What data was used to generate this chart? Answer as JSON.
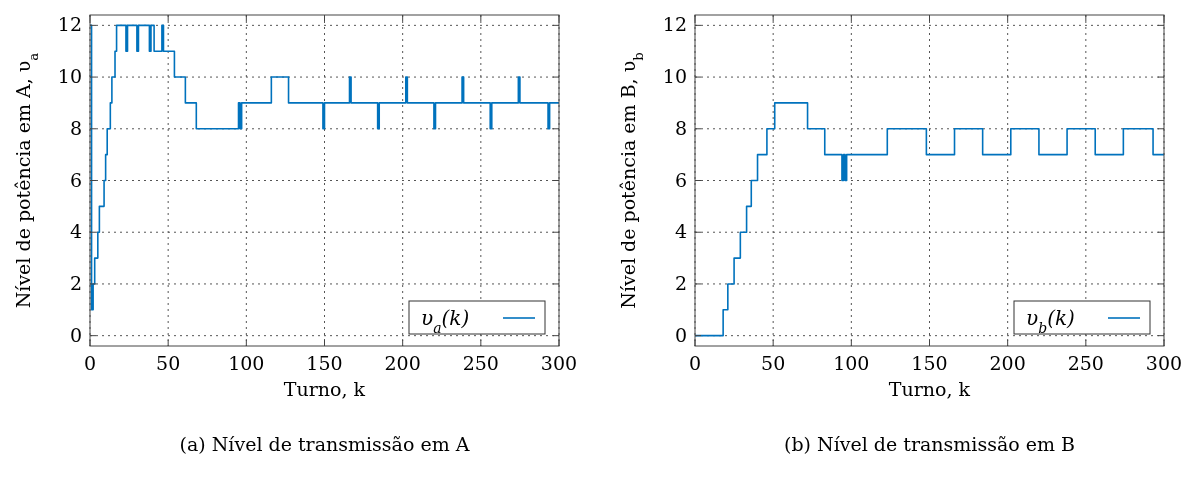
{
  "chart_data": [
    {
      "type": "step",
      "title": "(a) Nível de transmissão em A",
      "xlabel": "Turno, k",
      "ylabel": "Nível de potência em A, υ$_{a}$",
      "xlim": [
        0,
        300
      ],
      "ylim": [
        -0.4,
        12.4
      ],
      "xticks": [
        0,
        50,
        100,
        150,
        200,
        250,
        300
      ],
      "yticks": [
        0,
        2,
        4,
        6,
        8,
        10,
        12
      ],
      "grid": true,
      "legend": "bottom right",
      "line_style": "solid",
      "series": [
        {
          "name": "υ$_{a}$(k)",
          "color": "#0072bd",
          "x": [
            0,
            1,
            2,
            3,
            5,
            6,
            9,
            10,
            11,
            13,
            14,
            16,
            17,
            23,
            24,
            30,
            31,
            38,
            39,
            41,
            46,
            47,
            54,
            61,
            68,
            95,
            96,
            97,
            116,
            127,
            149,
            150,
            166,
            167,
            184,
            185,
            202,
            203,
            220,
            221,
            238,
            239,
            256,
            257,
            274,
            275,
            293,
            294,
            300
          ],
          "values": [
            12,
            1,
            2,
            3,
            4,
            5,
            6,
            7,
            8,
            9,
            10,
            11,
            12,
            11,
            12,
            11,
            12,
            11,
            12,
            11,
            12,
            11,
            10,
            9,
            8,
            9,
            8,
            9,
            10,
            9,
            8,
            9,
            10,
            9,
            8,
            9,
            10,
            9,
            8,
            9,
            10,
            9,
            8,
            9,
            10,
            9,
            8,
            9,
            9
          ]
        }
      ]
    },
    {
      "type": "step",
      "title": "(b) Nível de transmissão em B",
      "xlabel": "Turno, k",
      "ylabel": "Nível de potência em B, υ$_{b}$",
      "xlim": [
        0,
        300
      ],
      "ylim": [
        -0.4,
        12.4
      ],
      "xticks": [
        0,
        50,
        100,
        150,
        200,
        250,
        300
      ],
      "yticks": [
        0,
        2,
        4,
        6,
        8,
        10,
        12
      ],
      "grid": true,
      "legend": "bottom right",
      "line_style": "solid",
      "series": [
        {
          "name": "υ$_{b}$(k)",
          "color": "#0072bd",
          "x": [
            0,
            18,
            21,
            25,
            29,
            33,
            36,
            40,
            46,
            51,
            72,
            83,
            94,
            95,
            96,
            97,
            123,
            148,
            166,
            184,
            202,
            220,
            238,
            256,
            274,
            293,
            300
          ],
          "values": [
            0,
            1,
            2,
            3,
            4,
            5,
            6,
            7,
            8,
            9,
            8,
            7,
            6,
            7,
            6,
            7,
            8,
            7,
            8,
            7,
            8,
            7,
            8,
            7,
            8,
            7,
            7
          ]
        }
      ]
    }
  ]
}
